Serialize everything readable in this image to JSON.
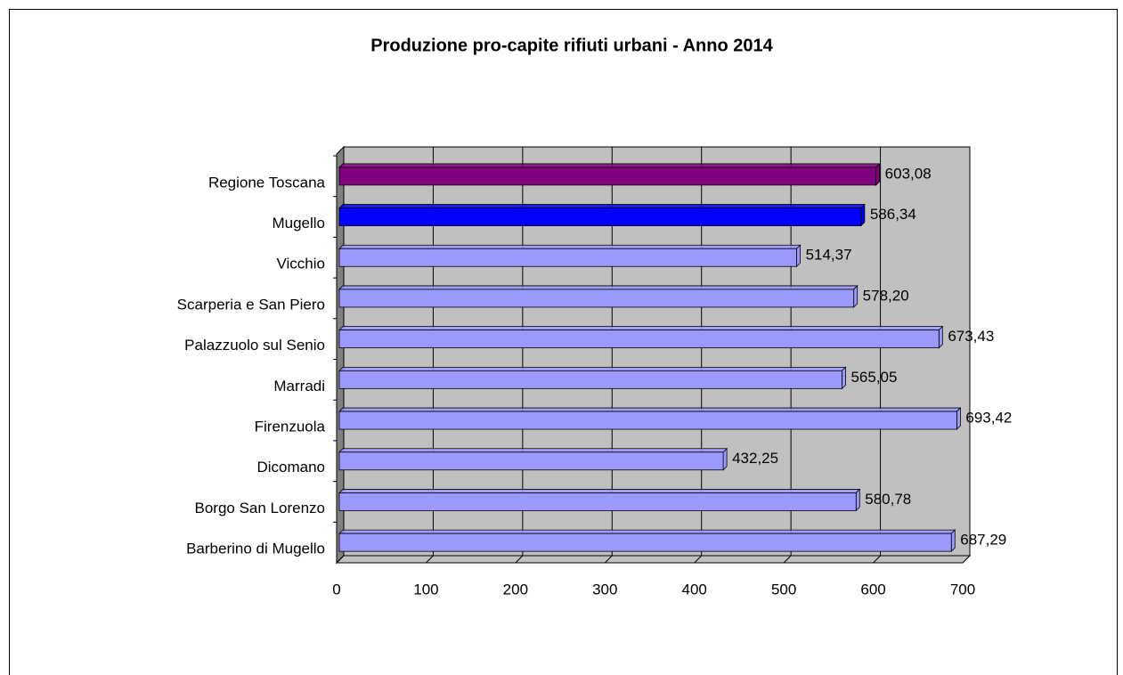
{
  "chart_data": {
    "type": "bar3d-horizontal",
    "title": "Produzione pro-capite rifiuti urbani - Anno 2014",
    "categories": [
      "Regione Toscana",
      "Mugello",
      "Vicchio",
      "Scarperia e San Piero",
      "Palazzuolo sul Senio",
      "Marradi",
      "Firenzuola",
      "Dicomano",
      "Borgo San Lorenzo",
      "Barberino di Mugello"
    ],
    "values": [
      603.08,
      586.34,
      514.37,
      578.2,
      673.43,
      565.05,
      693.42,
      432.25,
      580.78,
      687.29
    ],
    "value_labels": [
      "603,08",
      "586,34",
      "514,37",
      "578,20",
      "673,43",
      "565,05",
      "693,42",
      "432,25",
      "580,78",
      "687,29"
    ],
    "colors": [
      "#800080",
      "#0000ff",
      "#9999ff",
      "#9999ff",
      "#9999ff",
      "#9999ff",
      "#9999ff",
      "#9999ff",
      "#9999ff",
      "#9999ff"
    ],
    "xlim": [
      0,
      700
    ],
    "xticks": [
      0,
      100,
      200,
      300,
      400,
      500,
      600,
      700
    ],
    "grid": true
  }
}
